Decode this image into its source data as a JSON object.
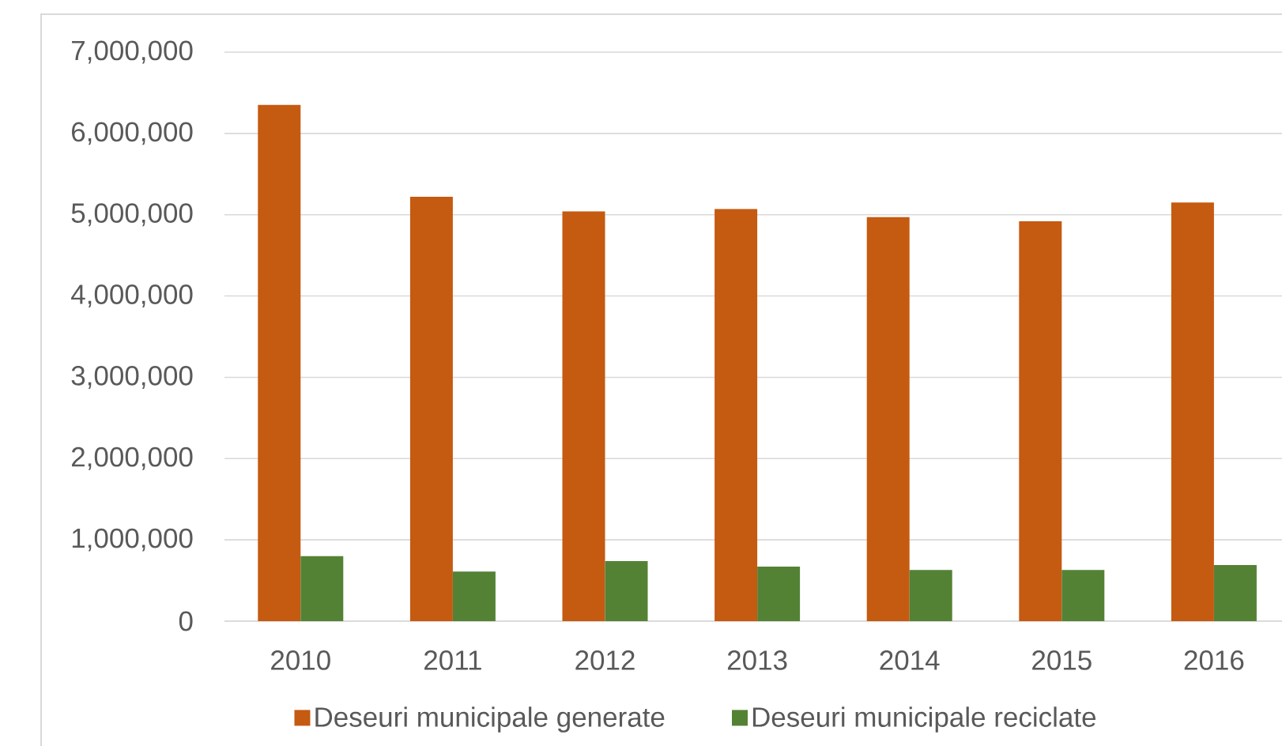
{
  "chart_data": {
    "type": "bar",
    "categories": [
      "2010",
      "2011",
      "2012",
      "2013",
      "2014",
      "2015",
      "2016"
    ],
    "series": [
      {
        "name": "Deseuri municipale generate",
        "color": "#c55a11",
        "values": [
          6350000,
          5220000,
          5040000,
          5070000,
          4970000,
          4920000,
          5150000
        ]
      },
      {
        "name": "Deseuri municipale reciclate",
        "color": "#548235",
        "values": [
          800000,
          610000,
          740000,
          670000,
          630000,
          630000,
          690000
        ]
      }
    ],
    "ylim": [
      0,
      7000000
    ],
    "yticks": [
      0,
      {
        "value": 1000000,
        "label": "1,000,000"
      },
      {
        "value": 2000000,
        "label": "2,000,000"
      },
      {
        "value": 3000000,
        "label": "3,000,000"
      },
      {
        "value": 4000000,
        "label": "4,000,000"
      },
      {
        "value": 5000000,
        "label": "5,000,000"
      },
      {
        "value": 6000000,
        "label": "6,000,000"
      },
      {
        "value": 7000000,
        "label": "7,000,000"
      }
    ],
    "grid": "y",
    "legend": "bottom"
  }
}
